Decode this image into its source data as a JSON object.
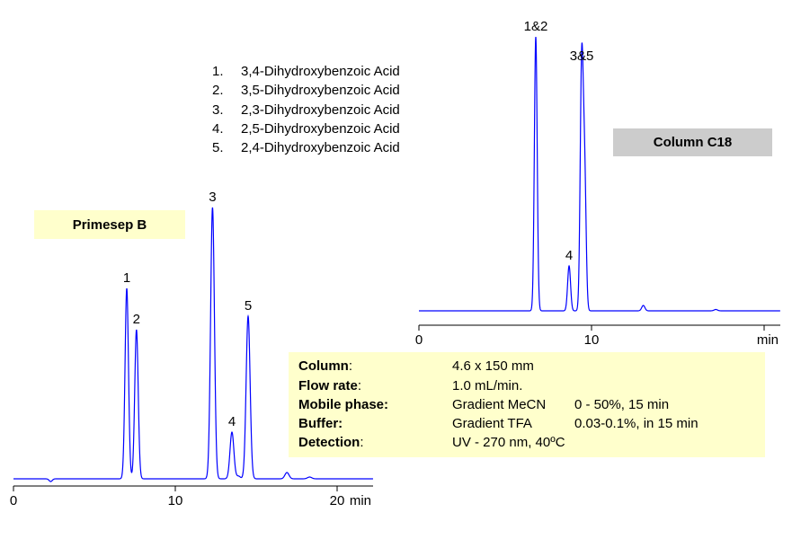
{
  "legend": [
    {
      "num": "1.",
      "name": "3,4-Dihydroxybenzoic Acid"
    },
    {
      "num": "2.",
      "name": "3,5-Dihydroxybenzoic Acid"
    },
    {
      "num": "3.",
      "name": "2,3-Dihydroxybenzoic Acid"
    },
    {
      "num": "4.",
      "name": "2,5-Dihydroxybenzoic Acid"
    },
    {
      "num": "5.",
      "name": "2,4-Dihydroxybenzoic Acid"
    }
  ],
  "conditions": [
    {
      "key": "Column",
      "sep": ":",
      "value": "4.6 x 150 mm",
      "value2": ""
    },
    {
      "key": "Flow rate",
      "sep": ":",
      "value": "1.0 mL/min.",
      "value2": ""
    },
    {
      "key": "Mobile phase",
      "sep": ":",
      "value": "Gradient MeCN",
      "value2": "0 - 50%, 15 min"
    },
    {
      "key": "Buffer",
      "sep": ":",
      "value": "Gradient TFA",
      "value2": "0.03-0.1%, in 15 min"
    },
    {
      "key": "Detection",
      "sep": ":",
      "value": "UV - 270 nm, 40ºC",
      "value2": ""
    }
  ],
  "chart_data": [
    {
      "type": "line",
      "title": "Primesep B",
      "xlabel": "min",
      "xlim": [
        0,
        22.2
      ],
      "xticks": [
        0,
        10,
        20
      ],
      "xtick_labels": [
        "0",
        "10",
        "20"
      ],
      "line_color": "#0000ff",
      "peaks": [
        {
          "label": "1",
          "rt": 7.0,
          "height": 212
        },
        {
          "label": "2",
          "rt": 7.6,
          "height": 166
        },
        {
          "label": "3",
          "rt": 12.3,
          "height": 302
        },
        {
          "label": "4",
          "rt": 13.5,
          "height": 52
        },
        {
          "label": "5",
          "rt": 14.5,
          "height": 181
        },
        {
          "label": "",
          "rt": 2.3,
          "height": -3
        },
        {
          "label": "",
          "rt": 13.9,
          "height": 3
        },
        {
          "label": "",
          "rt": 16.9,
          "height": 7
        },
        {
          "label": "",
          "rt": 18.3,
          "height": 2
        }
      ]
    },
    {
      "type": "line",
      "title": "Column  C18",
      "xlabel": "min",
      "xlim": [
        0,
        20.9
      ],
      "xticks": [
        0,
        10,
        20
      ],
      "xtick_labels": [
        "0",
        "10",
        ""
      ],
      "line_color": "#0000ff",
      "peaks": [
        {
          "label": "1&2",
          "rt": 6.77,
          "height": 305
        },
        {
          "label": "4",
          "rt": 8.7,
          "height": 50
        },
        {
          "label": "3&5",
          "rt": 9.43,
          "height": 272
        },
        {
          "label": "",
          "rt": 9.6,
          "height": 150
        },
        {
          "label": "",
          "rt": 13.0,
          "height": 6
        },
        {
          "label": "",
          "rt": 17.2,
          "height": 1.5
        }
      ]
    }
  ]
}
